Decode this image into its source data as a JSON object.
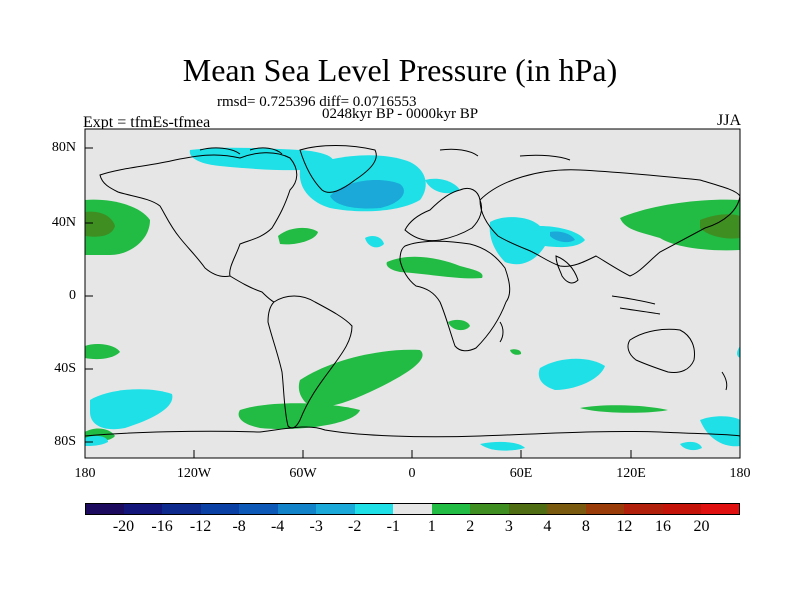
{
  "title": "Mean Sea Level Pressure (in hPa)",
  "subtitle": {
    "rmsd_diff": "rmsd= 0.725396 diff= 0.0716553",
    "period": "0248kyr BP - 0000kyr BP",
    "experiment": "Expt = tfmEs-tfmea",
    "season": "JJA"
  },
  "axes": {
    "latitude_ticks": [
      "80N",
      "40N",
      "0",
      "40S",
      "80S"
    ],
    "longitude_ticks": [
      "180",
      "120W",
      "60W",
      "0",
      "60E",
      "120E",
      "180"
    ]
  },
  "colorbar": {
    "labels": [
      "-20",
      "-16",
      "-12",
      "-8",
      "-4",
      "-3",
      "-2",
      "-1",
      "1",
      "2",
      "3",
      "4",
      "8",
      "12",
      "16",
      "20"
    ],
    "colors": [
      "#1b0a5e",
      "#14157a",
      "#0d2a8c",
      "#0a3fa3",
      "#0c59b8",
      "#1283c8",
      "#1aa9d8",
      "#1fe0e6",
      "#e6e6e6",
      "#22bb44",
      "#3e8e22",
      "#4f6e14",
      "#7a5a0e",
      "#9a3c0a",
      "#b0200a",
      "#c4140a",
      "#e01010"
    ]
  },
  "colors": {
    "ocean_background": "#e6e6e6",
    "positive_anomaly": "#22bb44",
    "positive_strong": "#3e8e22",
    "negative_anomaly": "#1fe0e6",
    "negative_strong": "#1aa9d8"
  }
}
